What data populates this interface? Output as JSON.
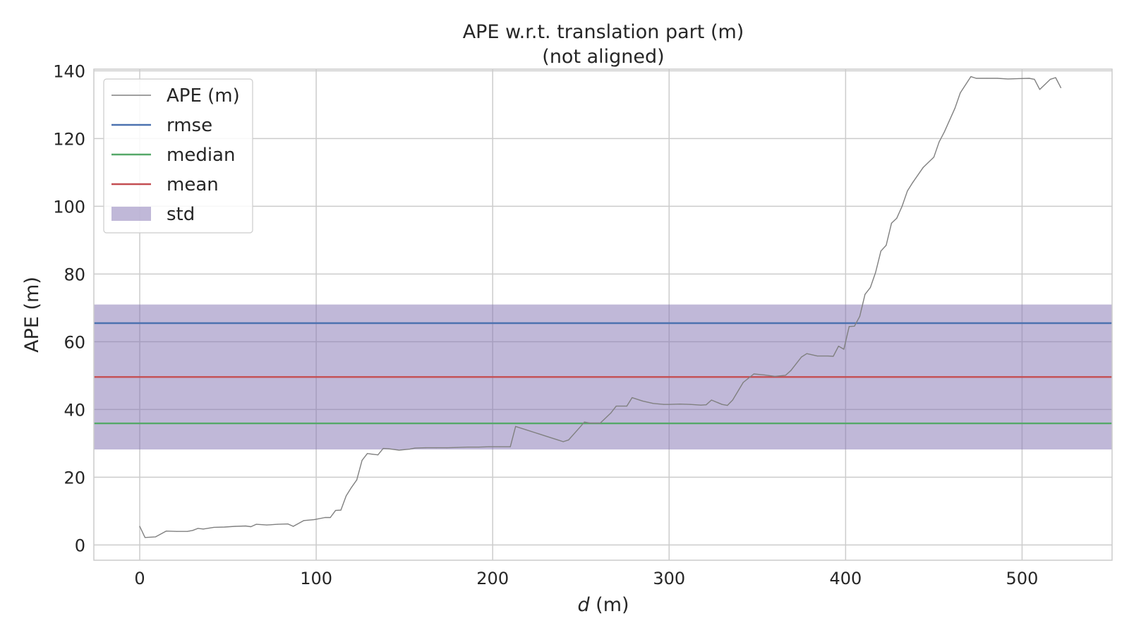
{
  "chart_data": {
    "type": "line",
    "title": "APE w.r.t. translation part (m)",
    "subtitle": "(not aligned)",
    "xlabel_italic": "d",
    "xlabel_rest": " (m)",
    "ylabel": "APE (m)",
    "xlim": [
      -26,
      551
    ],
    "ylim": [
      -4.5,
      140.5
    ],
    "xticks": [
      0,
      100,
      200,
      300,
      400,
      500
    ],
    "yticks": [
      0,
      20,
      40,
      60,
      80,
      100,
      120,
      140
    ],
    "grid": true,
    "legend_position": "top-left",
    "colors": {
      "ape": "#808080",
      "rmse": "#4c72b0",
      "median": "#55a868",
      "mean": "#c44e52",
      "std": "#8172b2"
    },
    "legend": [
      {
        "key": "ape",
        "label": "APE (m)"
      },
      {
        "key": "rmse",
        "label": "rmse"
      },
      {
        "key": "median",
        "label": "median"
      },
      {
        "key": "mean",
        "label": "mean"
      },
      {
        "key": "std",
        "label": "std"
      }
    ],
    "stats": {
      "rmse": 65.5,
      "median": 35.9,
      "mean": 49.6,
      "std_band": [
        28.2,
        71.0
      ]
    },
    "series": [
      {
        "name": "APE (m)",
        "x": [
          0,
          3,
          9,
          15,
          21,
          27,
          30,
          33,
          36,
          42,
          48,
          54,
          60,
          63,
          66,
          72,
          78,
          84,
          87,
          93,
          99,
          105,
          108,
          111,
          114,
          117,
          120,
          123,
          126,
          129,
          132,
          135,
          138,
          141,
          147,
          153,
          156,
          162,
          168,
          174,
          180,
          186,
          192,
          198,
          204,
          210,
          213,
          219,
          225,
          231,
          237,
          240,
          243,
          249,
          252,
          255,
          261,
          267,
          270,
          276,
          279,
          285,
          291,
          297,
          300,
          306,
          312,
          318,
          321,
          324,
          330,
          333,
          336,
          342,
          348,
          354,
          360,
          366,
          369,
          375,
          378,
          384,
          390,
          393,
          396,
          399,
          402,
          405,
          408,
          411,
          414,
          417,
          420,
          423,
          426,
          429,
          432,
          435,
          438,
          444,
          450,
          453,
          456,
          462,
          465,
          471,
          474,
          480,
          486,
          492,
          498,
          504,
          507,
          510,
          513,
          516,
          519,
          522
        ],
        "y": [
          5.5,
          2.2,
          2.4,
          4.1,
          4.0,
          4.0,
          4.3,
          4.9,
          4.7,
          5.2,
          5.3,
          5.5,
          5.6,
          5.4,
          6.1,
          5.9,
          6.1,
          6.2,
          5.5,
          7.2,
          7.5,
          8.1,
          8.1,
          10.2,
          10.3,
          14.5,
          17.0,
          19.2,
          25.0,
          27.0,
          26.8,
          26.6,
          28.5,
          28.4,
          28.0,
          28.3,
          28.6,
          28.7,
          28.7,
          28.7,
          28.8,
          28.9,
          28.9,
          29.0,
          29.0,
          29.0,
          35.0,
          34.0,
          33.0,
          32.0,
          31.0,
          30.5,
          31.0,
          34.5,
          36.3,
          36.0,
          36.0,
          39.0,
          41.0,
          41.0,
          43.5,
          42.5,
          41.8,
          41.5,
          41.5,
          41.6,
          41.5,
          41.3,
          41.4,
          42.8,
          41.5,
          41.2,
          42.8,
          48.0,
          50.5,
          50.2,
          49.8,
          50.1,
          51.5,
          55.5,
          56.5,
          55.8,
          55.8,
          55.7,
          58.7,
          57.8,
          64.5,
          64.6,
          67.5,
          74.0,
          76.0,
          80.5,
          86.8,
          88.5,
          95.0,
          96.5,
          100.0,
          104.5,
          107.0,
          111.5,
          114.5,
          119.0,
          122.0,
          129.0,
          133.5,
          138.3,
          137.8,
          137.8,
          137.8,
          137.6,
          137.7,
          137.8,
          137.5,
          134.5,
          136.0,
          137.5,
          138.0,
          135.0
        ]
      }
    ]
  }
}
